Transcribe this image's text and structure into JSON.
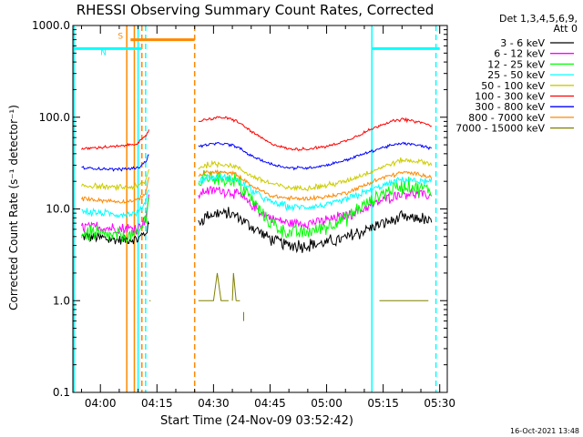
{
  "chart_data": {
    "type": "line",
    "title": "RHESSI Observing Summary Count Rates, Corrected",
    "xlabel": "Start Time (24-Nov-09 03:52:42)",
    "ylabel": "Corrected Count Rate (s⁻¹ detector⁻¹)",
    "yscale": "log",
    "ylim": [
      0.1,
      1000
    ],
    "xlim": [
      "03:52:42",
      "05:32:00"
    ],
    "y_ticks": [
      "0.1",
      "1.0",
      "10.0",
      "100.0",
      "1000.0"
    ],
    "x_ticks": [
      "04:00",
      "04:15",
      "04:30",
      "04:45",
      "05:00",
      "05:15",
      "05:30"
    ],
    "legend_position": "top-right",
    "legend_header": [
      "Det 1,3,4,5,6,9,",
      "Att 0"
    ],
    "series": [
      {
        "name": "3 - 6 keV",
        "color": "#000000",
        "segments": [
          {
            "t": [
              "03:55",
              "04:00",
              "04:05",
              "04:10",
              "04:12",
              "04:13"
            ],
            "y": [
              5.0,
              4.8,
              4.6,
              4.7,
              5.5,
              7.0
            ]
          },
          {
            "t": [
              "04:26",
              "04:28",
              "04:32",
              "04:36",
              "04:40",
              "04:45",
              "04:50",
              "04:55",
              "05:00",
              "05:05",
              "05:10",
              "05:15",
              "05:20",
              "05:25",
              "05:28"
            ],
            "y": [
              7.0,
              8.5,
              9.0,
              8.5,
              6.5,
              4.8,
              4.0,
              4.0,
              4.3,
              4.8,
              5.8,
              7.0,
              8.0,
              7.8,
              7.0
            ]
          }
        ]
      },
      {
        "name": "6 - 12 keV",
        "color": "#ff00ff",
        "segments": [
          {
            "t": [
              "03:55",
              "04:00",
              "04:05",
              "04:10",
              "04:12",
              "04:13"
            ],
            "y": [
              6.5,
              6.3,
              6.0,
              6.2,
              8.0,
              14.0
            ]
          },
          {
            "t": [
              "04:26",
              "04:28",
              "04:32",
              "04:36",
              "04:40",
              "04:45",
              "04:50",
              "04:55",
              "05:00",
              "05:05",
              "05:10",
              "05:15",
              "05:20",
              "05:25",
              "05:28"
            ],
            "y": [
              14.0,
              16.0,
              16.0,
              15.0,
              11.0,
              8.0,
              7.0,
              7.0,
              7.5,
              8.5,
              10.0,
              12.5,
              15.0,
              14.5,
              13.5
            ]
          }
        ]
      },
      {
        "name": "12 - 25 keV",
        "color": "#00ff00",
        "segments": [
          {
            "t": [
              "03:55",
              "04:00",
              "04:05",
              "04:10",
              "04:12",
              "04:13"
            ],
            "y": [
              5.5,
              5.2,
              5.0,
              5.2,
              8.0,
              16.0
            ]
          },
          {
            "t": [
              "04:26",
              "04:28",
              "04:32",
              "04:36",
              "04:40",
              "04:45",
              "04:50",
              "04:55",
              "05:00",
              "05:05",
              "05:10",
              "05:15",
              "05:20",
              "05:25",
              "05:28"
            ],
            "y": [
              18.0,
              22.0,
              22.0,
              20.0,
              13.0,
              7.0,
              5.5,
              5.5,
              6.5,
              8.0,
              11.0,
              15.0,
              18.0,
              17.0,
              16.0
            ]
          }
        ]
      },
      {
        "name": "25 - 50 keV",
        "color": "#00ffff",
        "segments": [
          {
            "t": [
              "03:55",
              "04:00",
              "04:05",
              "04:10",
              "04:12",
              "04:13"
            ],
            "y": [
              9.5,
              9.0,
              8.7,
              9.0,
              12.0,
              18.0
            ]
          },
          {
            "t": [
              "04:26",
              "04:28",
              "04:32",
              "04:36",
              "04:40",
              "04:45",
              "04:50",
              "04:55",
              "05:00",
              "05:05",
              "05:10",
              "05:15",
              "05:20",
              "05:25",
              "05:28"
            ],
            "y": [
              20.0,
              22.0,
              22.0,
              21.0,
              16.0,
              12.0,
              10.5,
              10.5,
              11.0,
              12.5,
              15.0,
              18.0,
              21.0,
              20.0,
              19.0
            ]
          }
        ]
      },
      {
        "name": "50 - 100 keV",
        "color": "#cccc00",
        "segments": [
          {
            "t": [
              "03:55",
              "04:00",
              "04:05",
              "04:10",
              "04:12",
              "04:13"
            ],
            "y": [
              18.0,
              17.5,
              17.0,
              17.5,
              20.0,
              28.0
            ]
          },
          {
            "t": [
              "04:26",
              "04:28",
              "04:32",
              "04:36",
              "04:40",
              "04:45",
              "04:50",
              "04:55",
              "05:00",
              "05:05",
              "05:10",
              "05:15",
              "05:20",
              "05:25",
              "05:28"
            ],
            "y": [
              28.0,
              30.0,
              31.0,
              29.0,
              23.0,
              19.0,
              17.0,
              17.0,
              18.0,
              20.0,
              24.0,
              29.0,
              34.0,
              33.0,
              31.0
            ]
          }
        ]
      },
      {
        "name": "100 - 300 keV",
        "color": "#ff0000",
        "segments": [
          {
            "t": [
              "03:55",
              "04:00",
              "04:05",
              "04:10",
              "04:12",
              "04:13"
            ],
            "y": [
              45.0,
              47.0,
              48.0,
              52.0,
              62.0,
              75.0
            ]
          },
          {
            "t": [
              "04:26",
              "04:28",
              "04:32",
              "04:36",
              "04:40",
              "04:45",
              "04:50",
              "04:55",
              "05:00",
              "05:05",
              "05:10",
              "05:15",
              "05:20",
              "05:25",
              "05:28"
            ],
            "y": [
              90.0,
              95.0,
              100.0,
              92.0,
              70.0,
              52.0,
              45.0,
              45.0,
              48.0,
              55.0,
              68.0,
              85.0,
              95.0,
              88.0,
              80.0
            ]
          }
        ]
      },
      {
        "name": "300 - 800 keV",
        "color": "#0000ff",
        "segments": [
          {
            "t": [
              "03:55",
              "04:00",
              "04:05",
              "04:10",
              "04:12",
              "04:13"
            ],
            "y": [
              28.0,
              27.5,
              27.0,
              28.0,
              33.0,
              40.0
            ]
          },
          {
            "t": [
              "04:26",
              "04:28",
              "04:32",
              "04:36",
              "04:40",
              "04:45",
              "04:50",
              "04:55",
              "05:00",
              "05:05",
              "05:10",
              "05:15",
              "05:20",
              "05:25",
              "05:28"
            ],
            "y": [
              48.0,
              50.0,
              52.0,
              48.0,
              38.0,
              31.0,
              28.0,
              28.0,
              30.0,
              34.0,
              40.0,
              47.0,
              52.0,
              49.0,
              45.0
            ]
          }
        ]
      },
      {
        "name": "800 - 7000 keV",
        "color": "#ff8800",
        "segments": [
          {
            "t": [
              "03:55",
              "04:00",
              "04:05",
              "04:10",
              "04:12",
              "04:13"
            ],
            "y": [
              13.0,
              12.5,
              12.0,
              12.5,
              15.0,
              23.0
            ]
          },
          {
            "t": [
              "04:26",
              "04:28",
              "04:32",
              "04:36",
              "04:40",
              "04:45",
              "04:50",
              "04:55",
              "05:00",
              "05:05",
              "05:10",
              "05:15",
              "05:20",
              "05:25",
              "05:28"
            ],
            "y": [
              23.0,
              25.0,
              25.0,
              24.0,
              18.0,
              14.0,
              13.0,
              13.0,
              13.5,
              15.0,
              18.0,
              22.0,
              25.0,
              24.0,
              22.0
            ]
          }
        ]
      },
      {
        "name": "7000 - 15000 keV",
        "color": "#808000",
        "segments": [
          {
            "t": [
              "04:13",
              "04:13.3"
            ],
            "y": [
              1.0,
              1.0
            ]
          },
          {
            "t": [
              "04:26",
              "04:30",
              "04:31",
              "04:32",
              "04:33",
              "04:34"
            ],
            "y": [
              1.0,
              1.0,
              2.0,
              1.0,
              1.0,
              1.0
            ]
          },
          {
            "t": [
              "04:35",
              "04:35.3",
              "04:36"
            ],
            "y": [
              1.0,
              2.0,
              1.0
            ]
          },
          {
            "t": [
              "04:36",
              "04:37"
            ],
            "y": [
              1.0,
              1.0
            ]
          },
          {
            "t": [
              "04:38",
              "04:38"
            ],
            "y": [
              0.6,
              0.75
            ]
          },
          {
            "t": [
              "05:14",
              "05:20",
              "05:25",
              "05:27"
            ],
            "y": [
              1.0,
              1.0,
              1.0,
              1.0
            ]
          }
        ]
      }
    ],
    "flag_bars": [
      {
        "label": "S",
        "color": "#ff8800",
        "y": 700,
        "start": "04:08",
        "end": "04:25"
      },
      {
        "label": "N",
        "color": "#00ffff",
        "y": 560,
        "start": "03:53",
        "end": "04:11"
      },
      {
        "color": "#00ffff",
        "y": 560,
        "start": "05:12",
        "end": "05:30"
      }
    ],
    "vertical_markers": [
      {
        "t": "04:07",
        "color": "#ff8800",
        "style": "solid"
      },
      {
        "t": "04:09",
        "color": "#ff8800",
        "style": "solid"
      },
      {
        "t": "04:10",
        "color": "#00ffff",
        "style": "solid"
      },
      {
        "t": "04:11",
        "color": "#ff8800",
        "style": "dashed"
      },
      {
        "t": "04:25",
        "color": "#ff8800",
        "style": "dashed"
      },
      {
        "t": "04:12",
        "color": "#00ffff",
        "style": "dashed"
      },
      {
        "t": "05:12",
        "color": "#00ffff",
        "style": "solid"
      },
      {
        "t": "05:29",
        "color": "#00ffff",
        "style": "dashed"
      },
      {
        "t": "03:53",
        "color": "#00ffff",
        "style": "solid"
      }
    ],
    "footer_timestamp": "16-Oct-2021 13:48"
  }
}
